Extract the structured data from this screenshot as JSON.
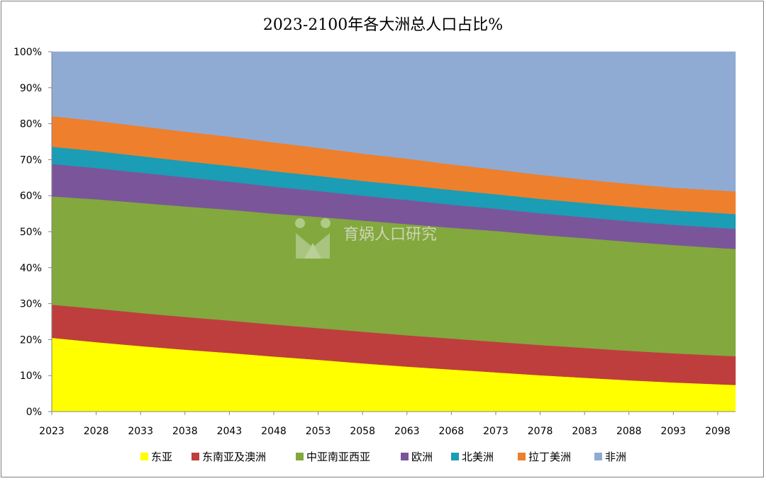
{
  "chart_data": {
    "type": "area",
    "stacked": "percent",
    "title": "2023-2100年各大洲总人口占比%",
    "xlabel": "",
    "ylabel": "",
    "ylim": [
      0,
      100
    ],
    "y_ticks": [
      "0%",
      "10%",
      "20%",
      "30%",
      "40%",
      "50%",
      "60%",
      "70%",
      "80%",
      "90%",
      "100%"
    ],
    "x_tick_labels": [
      "2023",
      "2028",
      "2033",
      "2038",
      "2043",
      "2048",
      "2053",
      "2058",
      "2063",
      "2068",
      "2073",
      "2078",
      "2083",
      "2088",
      "2093",
      "2098"
    ],
    "x": [
      2023,
      2028,
      2033,
      2038,
      2043,
      2048,
      2053,
      2058,
      2063,
      2068,
      2073,
      2078,
      2083,
      2088,
      2093,
      2098,
      2100
    ],
    "grid": false,
    "legend_position": "bottom",
    "series": [
      {
        "name": "东亚",
        "color": "#FFFF00",
        "values": [
          20.5,
          19.3,
          18.2,
          17.2,
          16.3,
          15.3,
          14.4,
          13.4,
          12.5,
          11.7,
          10.9,
          10.1,
          9.4,
          8.7,
          8.1,
          7.6,
          7.4
        ]
      },
      {
        "name": "东南亚及澳洲",
        "color": "#BE3E3E",
        "values": [
          9.2,
          9.3,
          9.2,
          9.1,
          9.0,
          8.9,
          8.8,
          8.8,
          8.7,
          8.6,
          8.5,
          8.4,
          8.3,
          8.2,
          8.1,
          8.0,
          8.0
        ]
      },
      {
        "name": "中亚南亚西亚",
        "color": "#82A83E",
        "values": [
          30.1,
          30.4,
          30.6,
          30.7,
          30.8,
          30.8,
          30.9,
          30.9,
          30.9,
          30.8,
          30.8,
          30.6,
          30.5,
          30.3,
          30.1,
          29.9,
          29.8
        ]
      },
      {
        "name": "欧洲",
        "color": "#7B559A",
        "values": [
          9.0,
          8.7,
          8.4,
          8.1,
          7.8,
          7.5,
          7.2,
          6.9,
          6.7,
          6.4,
          6.2,
          6.0,
          5.8,
          5.7,
          5.6,
          5.6,
          5.6
        ]
      },
      {
        "name": "北美洲",
        "color": "#1A9DB5",
        "values": [
          4.8,
          4.7,
          4.6,
          4.5,
          4.4,
          4.3,
          4.2,
          4.1,
          4.1,
          4.1,
          4.0,
          4.0,
          4.0,
          4.0,
          4.0,
          4.1,
          4.1
        ]
      },
      {
        "name": "拉丁美洲",
        "color": "#EE7F2D",
        "values": [
          8.5,
          8.4,
          8.3,
          8.2,
          8.1,
          8.0,
          7.8,
          7.6,
          7.4,
          7.1,
          6.9,
          6.7,
          6.5,
          6.4,
          6.3,
          6.3,
          6.3
        ]
      },
      {
        "name": "非洲",
        "color": "#8FABD4",
        "values": [
          17.9,
          19.2,
          20.7,
          22.2,
          23.6,
          25.2,
          26.7,
          28.3,
          29.7,
          31.3,
          32.7,
          34.2,
          35.5,
          36.7,
          37.8,
          38.5,
          38.8
        ]
      }
    ]
  },
  "watermark": {
    "text": "育娲人口研究"
  }
}
